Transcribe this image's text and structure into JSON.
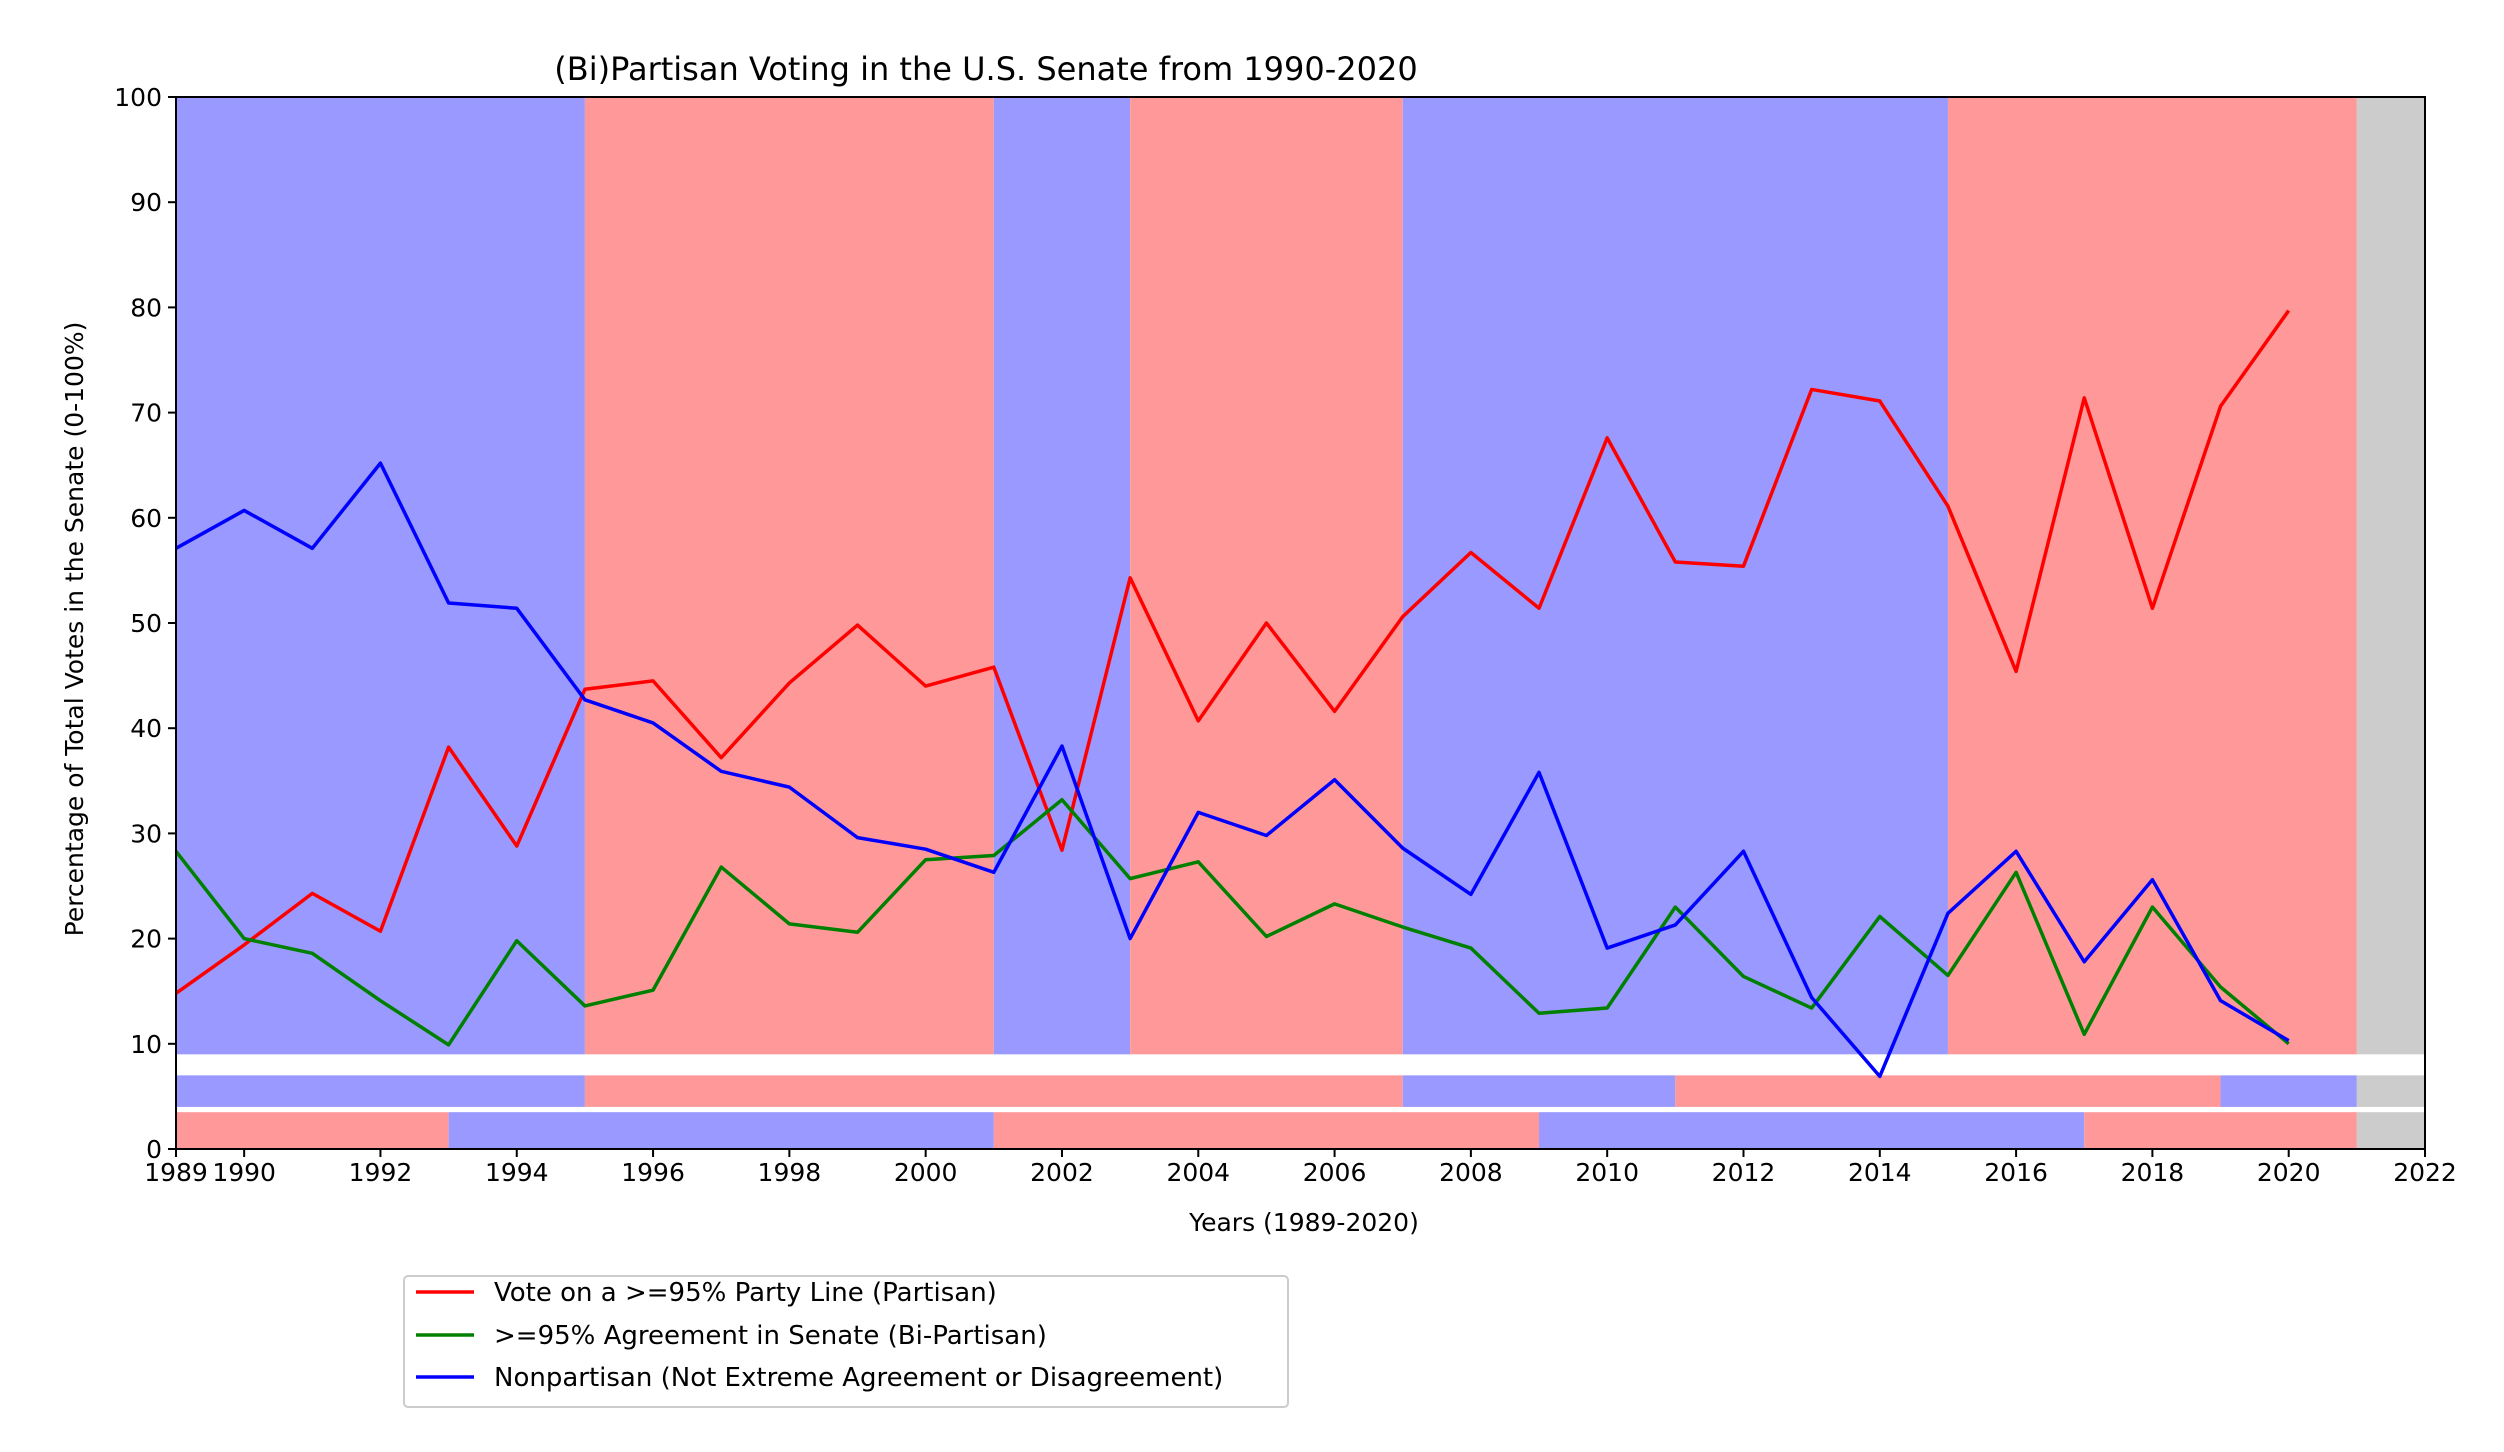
{
  "chart_data": {
    "type": "line",
    "title": "(Bi)Partisan Voting in the U.S. Senate from 1990-2020",
    "xlabel": "Years (1989-2020)",
    "ylabel": "Percentage of Total Votes in the Senate (0-100%)",
    "xlim": [
      1989,
      2022
    ],
    "ylim": [
      0,
      100
    ],
    "xticks": [
      1989,
      1990,
      1992,
      1994,
      1996,
      1998,
      2000,
      2002,
      2004,
      2006,
      2008,
      2010,
      2012,
      2014,
      2016,
      2018,
      2020,
      2022
    ],
    "yticks": [
      0,
      10,
      20,
      30,
      40,
      50,
      60,
      70,
      80,
      90,
      100
    ],
    "grid": false,
    "legend_position": "below the plot, left",
    "x": [
      1989,
      1990,
      1991,
      1992,
      1993,
      1994,
      1995,
      1996,
      1997,
      1998,
      1999,
      2000,
      2001,
      2002,
      2003,
      2004,
      2005,
      2006,
      2007,
      2008,
      2009,
      2010,
      2011,
      2012,
      2013,
      2014,
      2015,
      2016,
      2017,
      2018,
      2019,
      2020
    ],
    "series": [
      {
        "name": "Vote on a >=95% Party Line (Partisan)",
        "color": "#ff0000",
        "values": [
          14.8,
          19.4,
          24.3,
          20.7,
          38.2,
          28.8,
          43.7,
          44.5,
          37.2,
          44.3,
          49.8,
          44.0,
          45.8,
          28.4,
          54.3,
          40.7,
          50.0,
          41.6,
          50.6,
          56.7,
          51.4,
          67.6,
          55.8,
          55.4,
          72.2,
          71.1,
          61.1,
          45.4,
          71.4,
          51.4,
          70.6,
          79.7
        ]
      },
      {
        "name": ">=95% Agreement in Senate (Bi-Partisan)",
        "color": "#008000",
        "values": [
          28.3,
          20.0,
          18.6,
          14.1,
          9.9,
          19.8,
          13.6,
          15.1,
          26.8,
          21.4,
          20.6,
          27.5,
          27.9,
          33.2,
          25.7,
          27.3,
          20.2,
          23.3,
          21.1,
          19.1,
          12.9,
          13.4,
          23.0,
          16.4,
          13.4,
          22.1,
          16.5,
          26.3,
          10.9,
          23.0,
          15.4,
          10.0
        ]
      },
      {
        "name": "Nonpartisan (Not Extreme Agreement or Disagreement)",
        "color": "#0000ff",
        "values": [
          57.1,
          60.7,
          57.1,
          65.2,
          51.9,
          51.4,
          42.7,
          40.5,
          35.9,
          34.4,
          29.6,
          28.5,
          26.3,
          38.3,
          20.0,
          32.0,
          29.8,
          35.1,
          28.6,
          24.2,
          35.8,
          19.1,
          21.3,
          28.3,
          14.4,
          6.9,
          22.4,
          28.3,
          17.8,
          25.6,
          14.1,
          10.3
        ]
      }
    ],
    "control_bands": [
      {
        "name": "background",
        "y_range": [
          9,
          100
        ],
        "spans": [
          {
            "from": 1989,
            "to": 1995,
            "party": "D"
          },
          {
            "from": 1995,
            "to": 2001,
            "party": "R"
          },
          {
            "from": 2001,
            "to": 2003,
            "party": "D"
          },
          {
            "from": 2003,
            "to": 2007,
            "party": "R"
          },
          {
            "from": 2007,
            "to": 2015,
            "party": "D"
          },
          {
            "from": 2015,
            "to": 2021,
            "party": "R"
          },
          {
            "from": 2021,
            "to": 2022,
            "party": "none"
          }
        ]
      },
      {
        "name": "middle strip",
        "y_range": [
          4,
          7
        ],
        "spans": [
          {
            "from": 1989,
            "to": 1995,
            "party": "D"
          },
          {
            "from": 1995,
            "to": 2007,
            "party": "R"
          },
          {
            "from": 2007,
            "to": 2011,
            "party": "D"
          },
          {
            "from": 2011,
            "to": 2019,
            "party": "R"
          },
          {
            "from": 2019,
            "to": 2021,
            "party": "D"
          },
          {
            "from": 2021,
            "to": 2022,
            "party": "none"
          }
        ]
      },
      {
        "name": "bottom strip",
        "y_range": [
          0,
          3.5
        ],
        "spans": [
          {
            "from": 1989,
            "to": 1993,
            "party": "R"
          },
          {
            "from": 1993,
            "to": 2001,
            "party": "D"
          },
          {
            "from": 2001,
            "to": 2009,
            "party": "R"
          },
          {
            "from": 2009,
            "to": 2017,
            "party": "D"
          },
          {
            "from": 2017,
            "to": 2021,
            "party": "R"
          },
          {
            "from": 2021,
            "to": 2022,
            "party": "none"
          }
        ]
      }
    ],
    "party_colors": {
      "D": "#9999ff",
      "R": "#ff9999",
      "none": "#cccccc"
    }
  }
}
